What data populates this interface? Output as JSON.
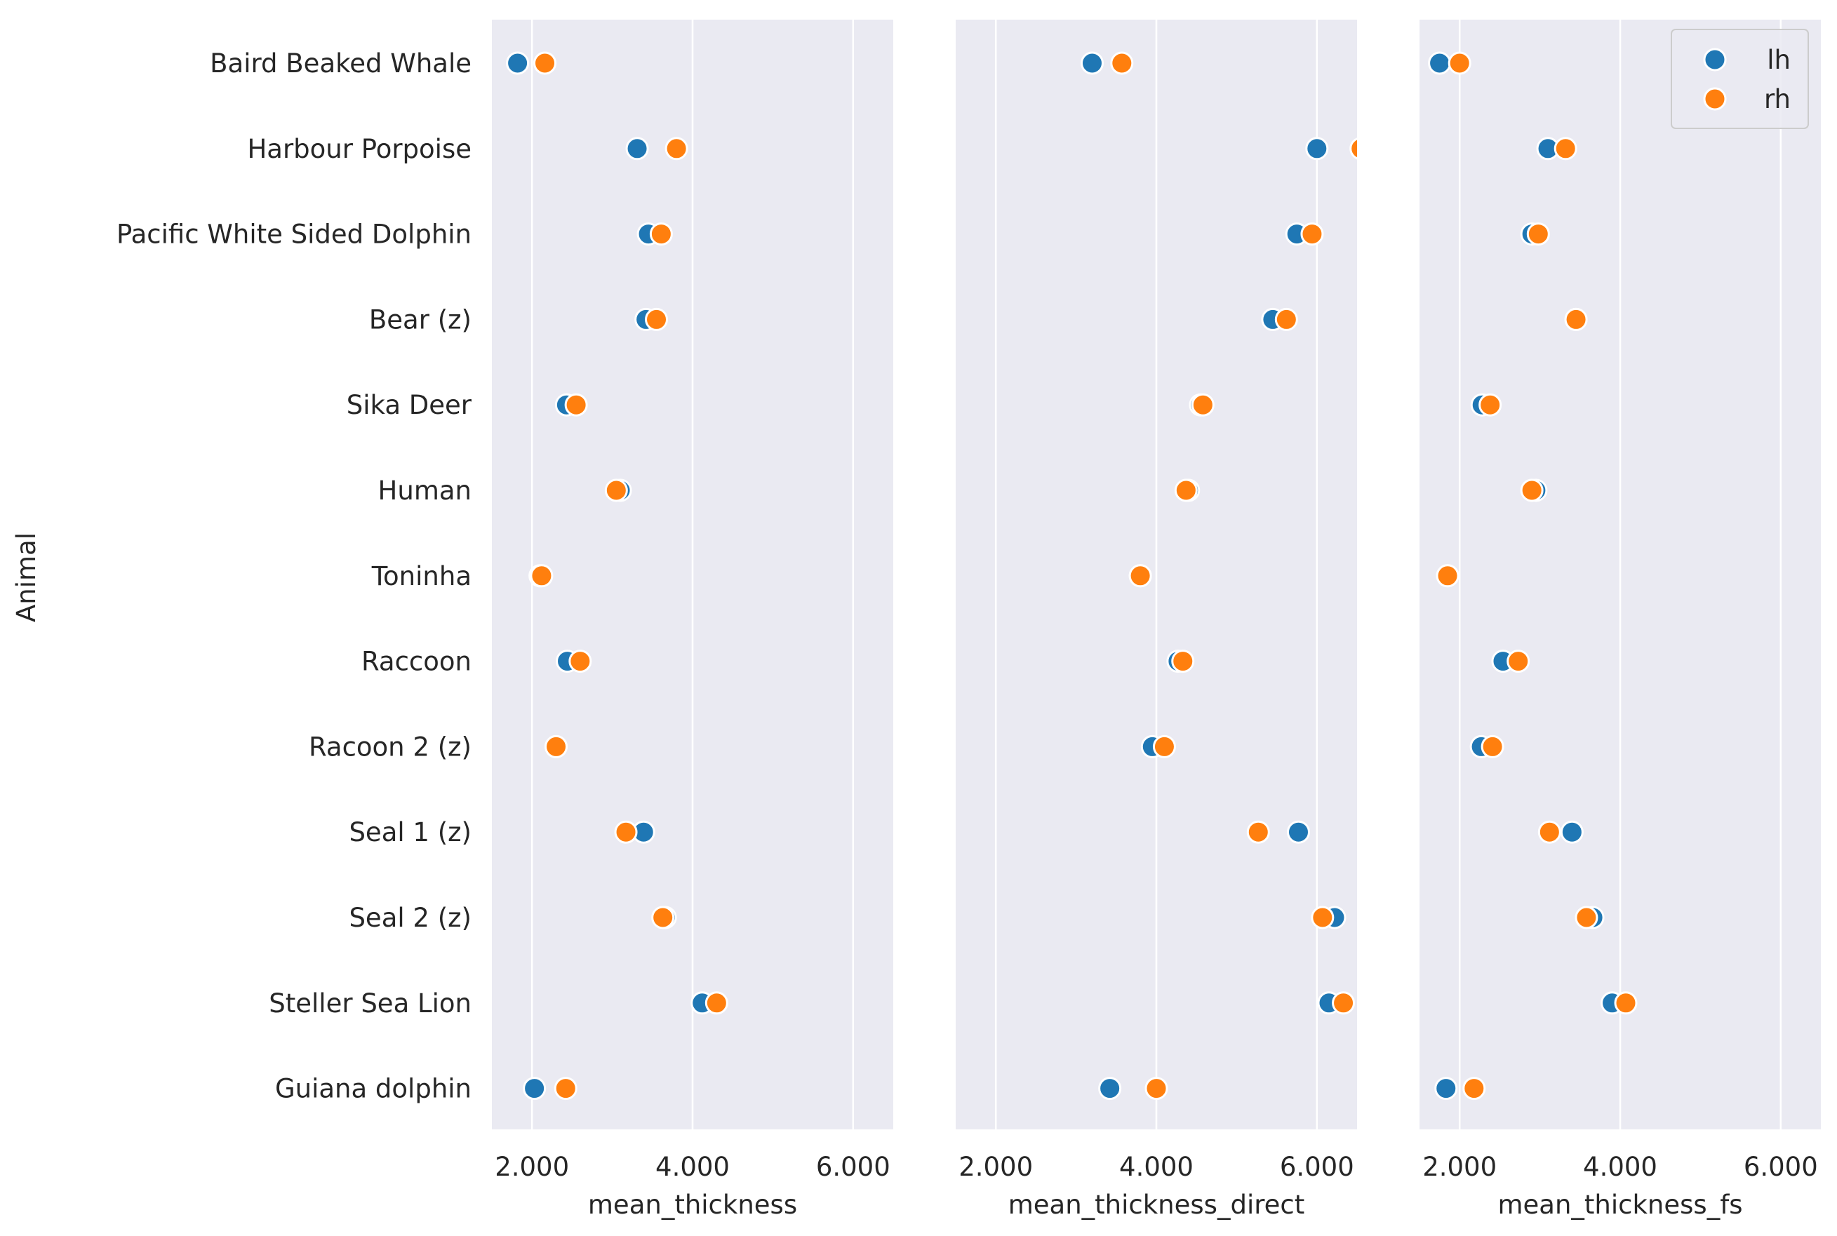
{
  "chart_data": {
    "type": "scatter",
    "ylabel": "Animal",
    "categories": [
      "Baird Beaked Whale",
      "Harbour Porpoise",
      "Pacific White Sided Dolphin",
      "Bear (z)",
      "Sika Deer",
      "Human",
      "Toninha",
      "Raccoon",
      "Racoon 2 (z)",
      "Seal 1 (z)",
      "Seal 2 (z)",
      "Steller Sea Lion",
      "Guiana dolphin"
    ],
    "xlim": [
      1.5,
      6.5
    ],
    "xticks": [
      2,
      4,
      6
    ],
    "xtick_labels": [
      "2.000",
      "4.000",
      "6.000"
    ],
    "grid": true,
    "legend": {
      "position": "top-right",
      "entries": [
        "lh",
        "rh"
      ]
    },
    "colors": {
      "lh": "#1f77b4",
      "rh": "#ff7f0e",
      "background": "#eaeaf2",
      "grid": "#ffffff"
    },
    "panels": [
      {
        "xlabel": "mean_thickness",
        "series": [
          {
            "name": "lh",
            "values": [
              1.82,
              3.31,
              3.45,
              3.42,
              2.43,
              3.1,
              2.1,
              2.44,
              2.3,
              3.39,
              3.66,
              4.12,
              2.03
            ]
          },
          {
            "name": "rh",
            "values": [
              2.16,
              3.8,
              3.61,
              3.55,
              2.55,
              3.05,
              2.12,
              2.6,
              2.3,
              3.17,
              3.63,
              4.3,
              2.42
            ]
          }
        ]
      },
      {
        "xlabel": "mean_thickness_direct",
        "series": [
          {
            "name": "lh",
            "values": [
              3.2,
              6.0,
              5.75,
              5.45,
              4.55,
              4.4,
              3.8,
              4.27,
              3.95,
              5.77,
              6.22,
              6.15,
              3.42
            ]
          },
          {
            "name": "rh",
            "values": [
              3.57,
              6.55,
              5.94,
              5.62,
              4.58,
              4.37,
              3.8,
              4.33,
              4.1,
              5.27,
              6.07,
              6.33,
              4.0
            ]
          }
        ]
      },
      {
        "xlabel": "mean_thickness_fs",
        "series": [
          {
            "name": "lh",
            "values": [
              1.75,
              3.1,
              2.9,
              3.45,
              2.28,
              2.95,
              1.85,
              2.54,
              2.27,
              3.4,
              3.66,
              3.9,
              1.83
            ]
          },
          {
            "name": "rh",
            "values": [
              2.0,
              3.32,
              2.98,
              3.45,
              2.38,
              2.9,
              1.85,
              2.73,
              2.41,
              3.12,
              3.58,
              4.07,
              2.18
            ]
          }
        ]
      }
    ]
  }
}
